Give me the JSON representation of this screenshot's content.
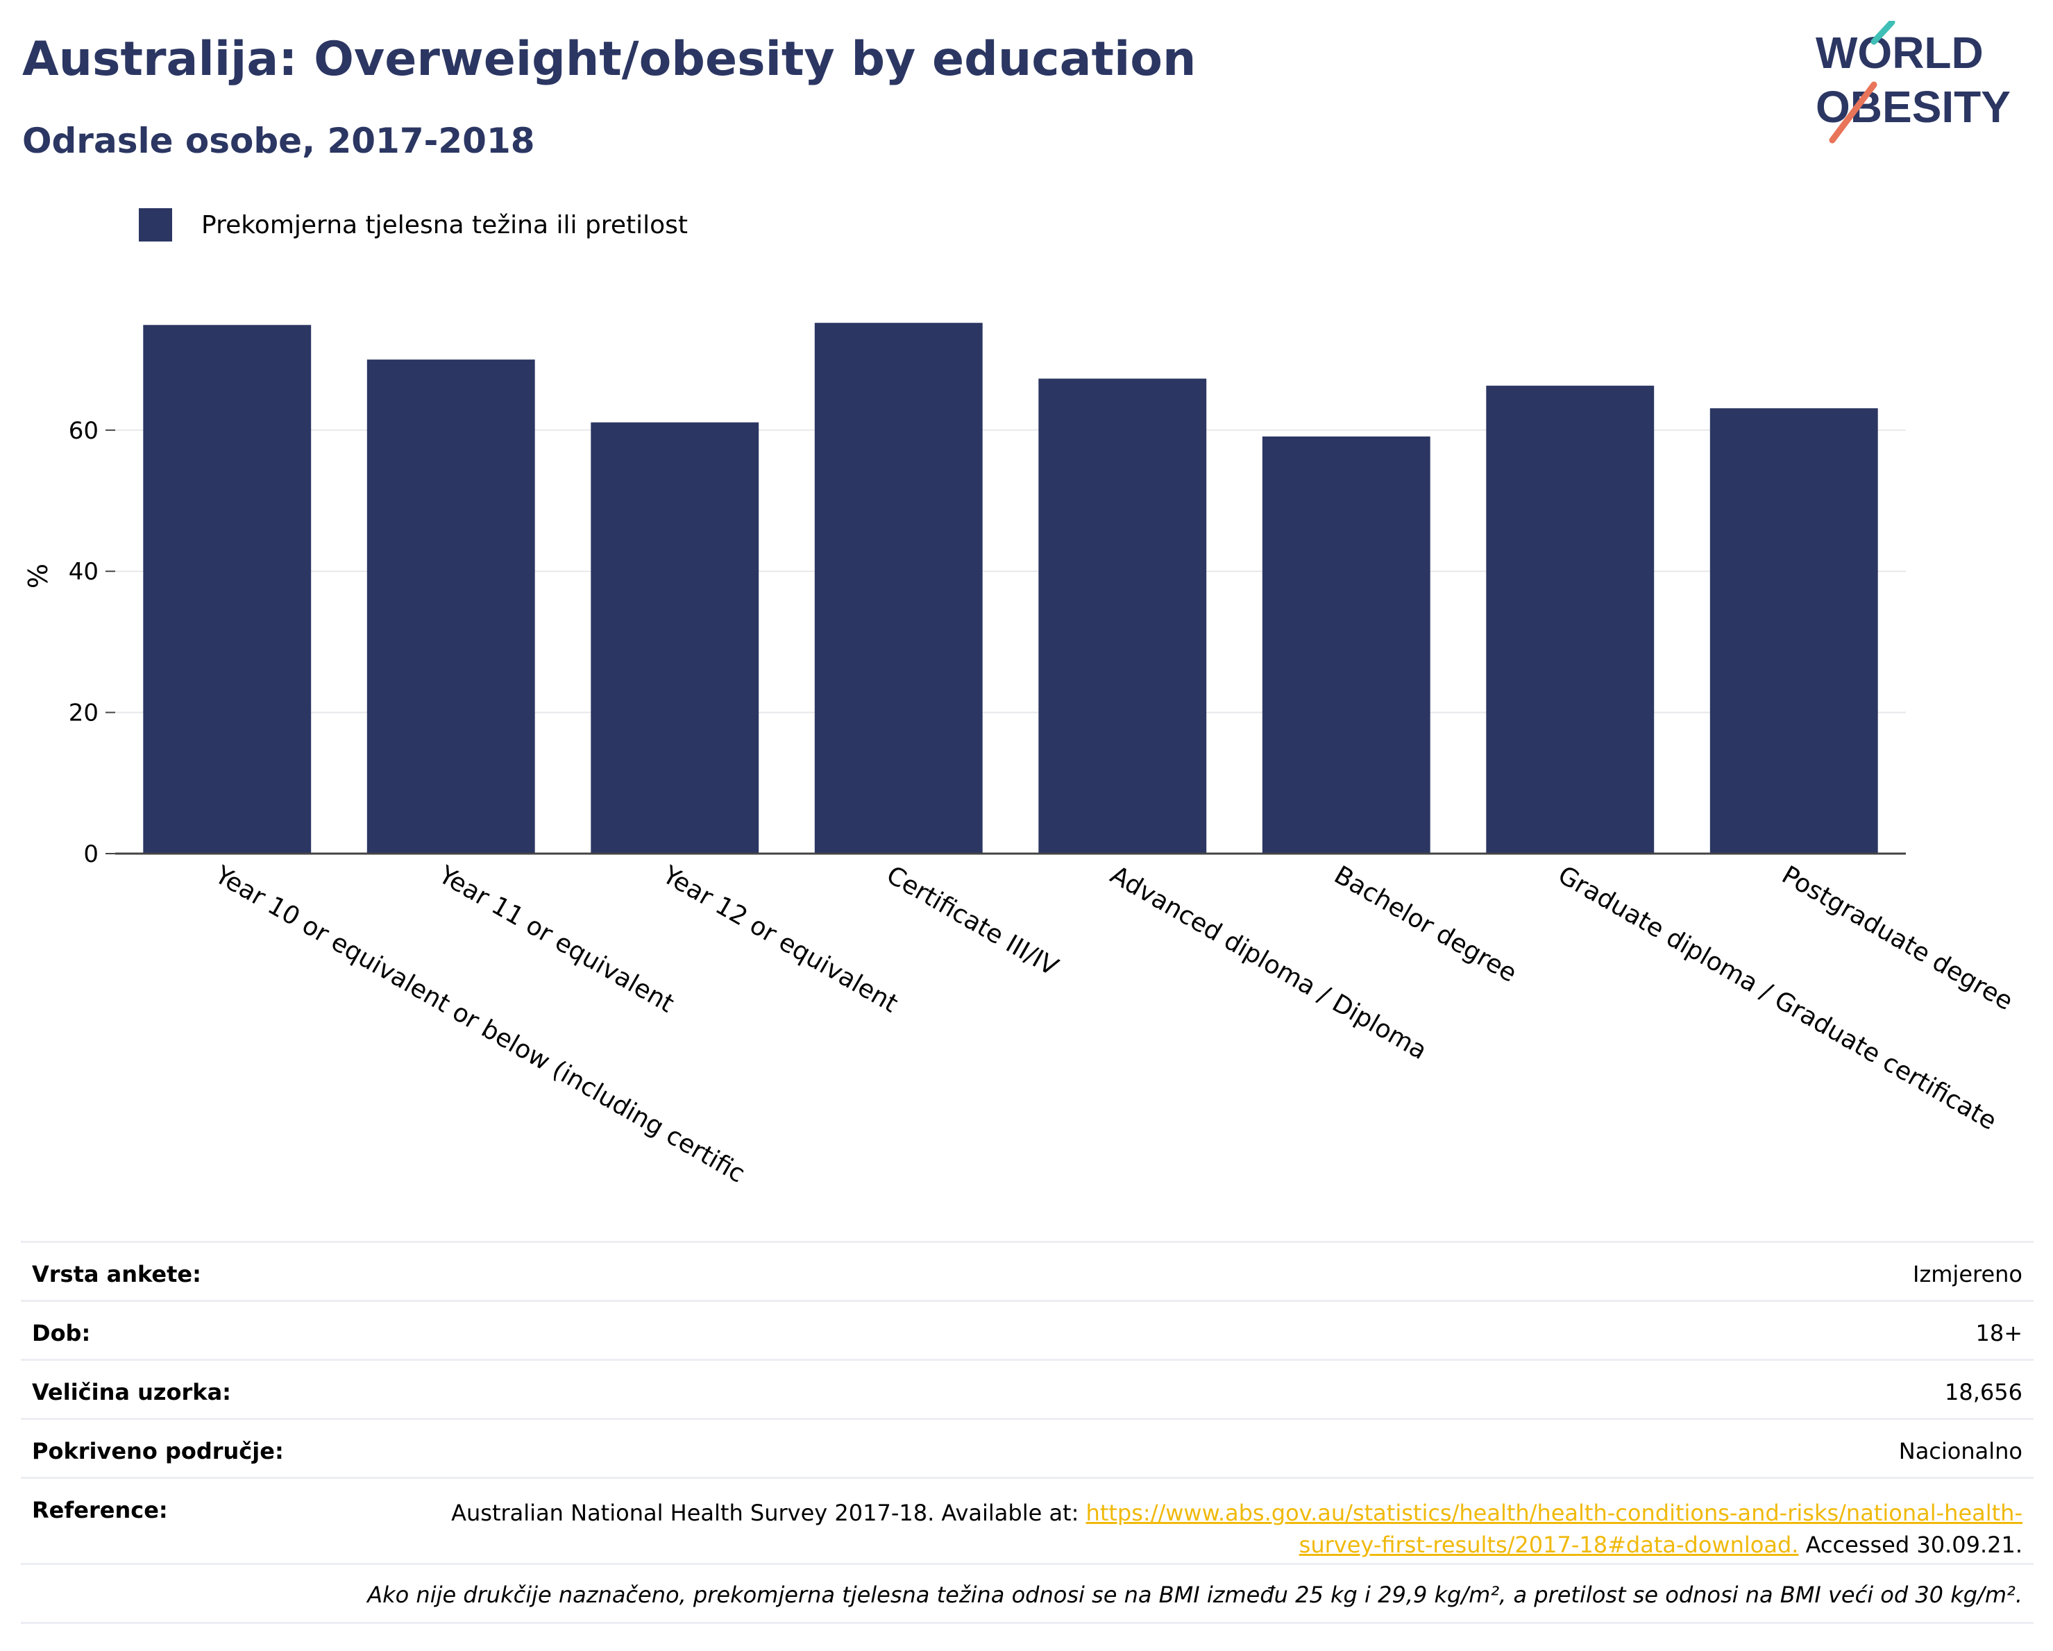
{
  "header": {
    "title": "Australija: Overweight/obesity by education",
    "subtitle": "Odrasle osobe, 2017-2018"
  },
  "logo": {
    "line1": "WORLD",
    "line2": "OBESITY"
  },
  "colors": {
    "bar": "#2b3662",
    "title": "#2b3662",
    "link": "#f0b90b",
    "logo_teal": "#3fbfb5",
    "logo_coral": "#e8745a"
  },
  "chart_data": {
    "type": "bar",
    "ylabel": "%",
    "ylim": [
      0,
      80
    ],
    "yticks": [
      0,
      20,
      40,
      60
    ],
    "grid": true,
    "legend_position": "top-left",
    "categories": [
      "Year 10 or equivalent or below (including certific",
      "Year 11 or equivalent",
      "Year 12 or equivalent",
      "Certificate III/IV",
      "Advanced diploma / Diploma",
      "Bachelor degree",
      "Graduate diploma / Graduate certificate",
      "Postgraduate degree"
    ],
    "series": [
      {
        "name": "Prekomjerna tjelesna težina ili pretilost",
        "values": [
          74.9,
          70.0,
          61.1,
          75.2,
          67.3,
          59.1,
          66.3,
          63.1
        ]
      }
    ]
  },
  "info": {
    "rows": [
      {
        "key": "Vrsta ankete:",
        "value": "Izmjereno"
      },
      {
        "key": "Dob:",
        "value": "18+"
      },
      {
        "key": "Veličina uzorka:",
        "value": "18,656"
      },
      {
        "key": "Pokriveno područje:",
        "value": "Nacionalno"
      }
    ],
    "reference_key": "Reference:",
    "reference_text": "Australian National Health Survey 2017-18. Available at:",
    "reference_link": "https://www.abs.gov.au/statistics/health/health-conditions-and-risks/national-health-survey-first-results/2017-18#data-download.",
    "reference_suffix": "Accessed 30.09.21.",
    "note": "Ako nije drukčije naznačeno, prekomjerna tjelesna težina odnosi se na BMI između 25 kg i 29,9 kg/m², a pretilost se odnosi na BMI veći od 30 kg/m²."
  }
}
